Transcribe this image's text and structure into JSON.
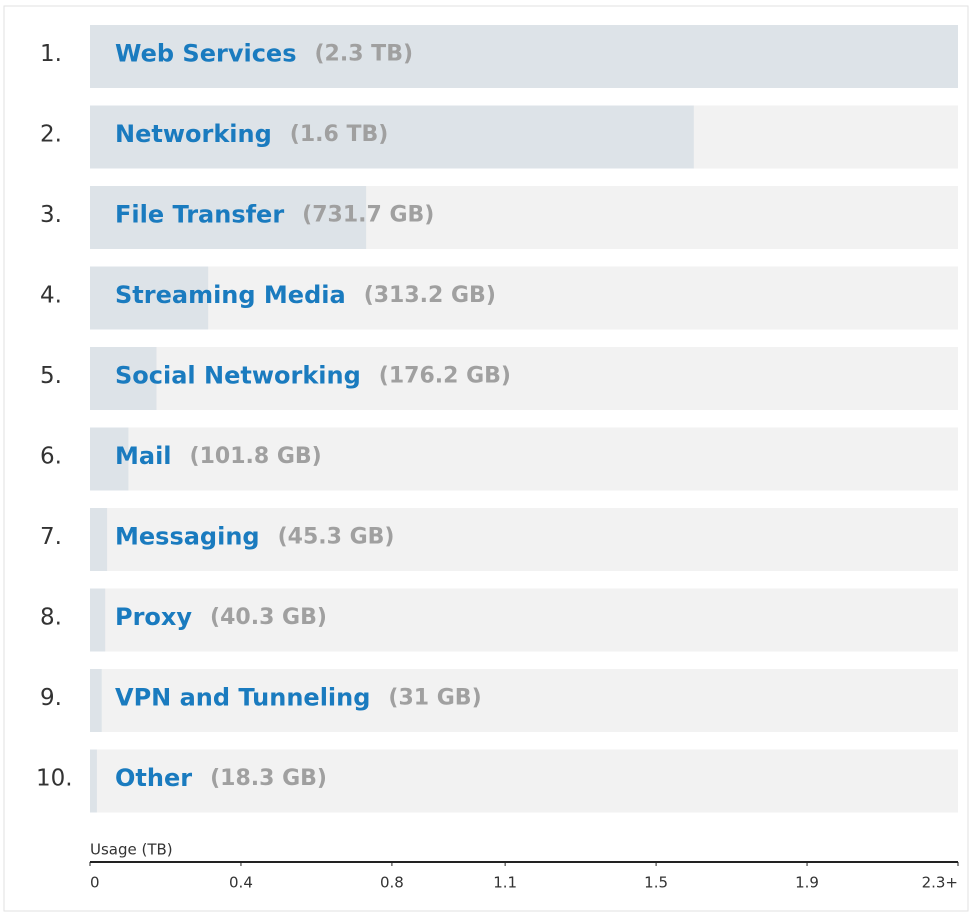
{
  "chart_data": {
    "type": "bar",
    "orientation": "horizontal",
    "ranks": [
      "1.",
      "2.",
      "3.",
      "4.",
      "5.",
      "6.",
      "7.",
      "8.",
      "9.",
      "10."
    ],
    "categories": [
      "Web Services",
      "Networking",
      "File Transfer",
      "Streaming Media",
      "Social Networking",
      "Mail",
      "Messaging",
      "Proxy",
      "VPN and Tunneling",
      "Other"
    ],
    "values": [
      2.3,
      1.6,
      0.7317,
      0.3132,
      0.1762,
      0.1018,
      0.0453,
      0.0403,
      0.031,
      0.0183
    ],
    "value_labels": [
      "(2.3 TB)",
      "(1.6 TB)",
      "(731.7 GB)",
      "(313.2 GB)",
      "(176.2 GB)",
      "(101.8 GB)",
      "(45.3 GB)",
      "(40.3 GB)",
      "(31 GB)",
      "(18.3 GB)"
    ],
    "color": "#dde3e8",
    "track_color": "#f2f2f2",
    "x_label": "Usage (TB)",
    "xlim": [
      0,
      2.3
    ],
    "xticks": [
      0,
      0.4,
      0.8,
      1.1,
      1.5,
      1.9,
      {
        "value": 2.3,
        "label": "2.3+"
      }
    ]
  }
}
